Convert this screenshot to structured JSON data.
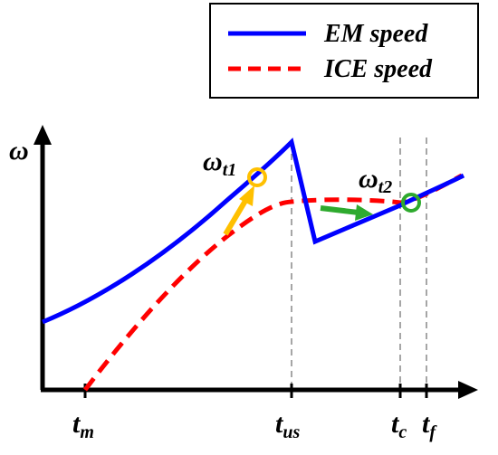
{
  "chart_data": {
    "type": "line",
    "title": "",
    "xlabel": "",
    "ylabel": "ω",
    "grid": false,
    "legend_position": "top-right",
    "x_ticks": [
      {
        "key": "tm",
        "main": "t",
        "sub": "m"
      },
      {
        "key": "tus",
        "main": "t",
        "sub": "us"
      },
      {
        "key": "tc",
        "main": "t",
        "sub": "c"
      },
      {
        "key": "tf",
        "main": "t",
        "sub": "f"
      }
    ],
    "series": [
      {
        "name": "EM speed",
        "color": "#0000ff",
        "style": "solid"
      },
      {
        "name": "ICE speed",
        "color": "#ff0000",
        "style": "dashed"
      }
    ],
    "annotations": [
      {
        "key": "wt1",
        "main": "ω",
        "sub": "t1",
        "marker_color": "#ffc000"
      },
      {
        "key": "wt2",
        "main": "ω",
        "sub": "t2",
        "marker_color": "#2eaa2e"
      }
    ]
  }
}
